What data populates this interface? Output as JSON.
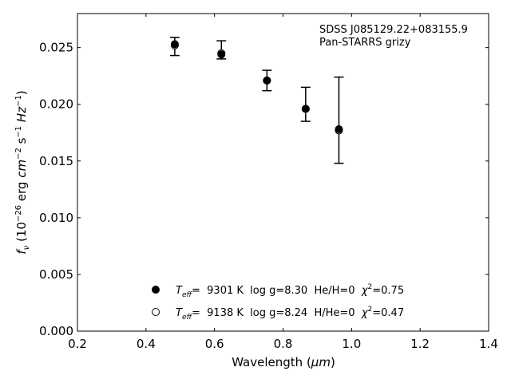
{
  "chart_data": {
    "type": "scatter",
    "xlabel_main": "Wavelength (",
    "xlabel_unit": "μm",
    "xlabel_close": ")",
    "ylabel_sym": "f",
    "ylabel_sub": "ν",
    "ylabel_open": " (10",
    "ylabel_exp1": "−26",
    "ylabel_erg": " erg ",
    "ylabel_cm": "cm",
    "ylabel_exp2": "−2",
    "ylabel_s": " s",
    "ylabel_exp3": "−1",
    "ylabel_hz": " Hz",
    "ylabel_exp4": "−1",
    "ylabel_close": ")",
    "xlim": [
      0.2,
      1.4
    ],
    "ylim": [
      0.0,
      0.028
    ],
    "xticks": [
      "0.2",
      "0.4",
      "0.6",
      "0.8",
      "1.0",
      "1.2",
      "1.4"
    ],
    "xtick_values": [
      0.2,
      0.4,
      0.6,
      0.8,
      1.0,
      1.2,
      1.4
    ],
    "yticks": [
      "0.000",
      "0.005",
      "0.010",
      "0.015",
      "0.020",
      "0.025"
    ],
    "ytick_values": [
      0.0,
      0.005,
      0.01,
      0.015,
      0.02,
      0.025
    ],
    "annotation": [
      "SDSS J085129.22+083155.9",
      "Pan-STARRS grizy"
    ],
    "observed": {
      "x": [
        0.484,
        0.62,
        0.753,
        0.866,
        0.963
      ],
      "y": [
        0.0251,
        0.0248,
        0.0221,
        0.02,
        0.0186
      ],
      "yerr": [
        0.0008,
        0.0008,
        0.0009,
        0.0015,
        0.0038
      ]
    },
    "series": [
      {
        "marker": "filled",
        "x": [
          0.484,
          0.62,
          0.753,
          0.866,
          0.963
        ],
        "y": [
          0.0253,
          0.0244,
          0.0221,
          0.0196,
          0.0178
        ]
      },
      {
        "marker": "open",
        "x": [
          0.484,
          0.62,
          0.753,
          0.866,
          0.963
        ],
        "y": [
          0.0252,
          0.0245,
          0.0221,
          0.0196,
          0.0177
        ]
      }
    ],
    "legend": [
      {
        "marker": "filled",
        "teff": "T",
        "teff_sub": "eff",
        "text": "=  9301 K  log g=8.30  He/H=0  ",
        "chi": "χ",
        "chi_sup": "2",
        "chi_val": "=0.75"
      },
      {
        "marker": "open",
        "teff": "T",
        "teff_sub": "eff",
        "text": "=  9138 K  log g=8.24  H/He=0  ",
        "chi": "χ",
        "chi_sup": "2",
        "chi_val": "=0.47"
      }
    ],
    "legend_placement": "lower-center",
    "grid": false
  }
}
